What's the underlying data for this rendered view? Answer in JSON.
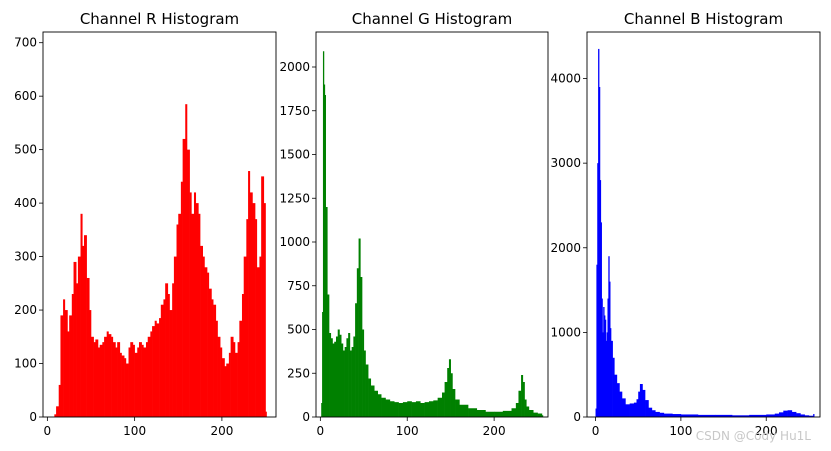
{
  "watermark": "CSDN @Cody Hu1L",
  "chart_data": [
    {
      "type": "bar",
      "title": "Channel R Histogram",
      "color": "#ff0000",
      "xlim": [
        -5,
        262
      ],
      "ylim": [
        0,
        720
      ],
      "xticks": [
        0,
        100,
        200
      ],
      "yticks": [
        0,
        100,
        200,
        300,
        400,
        500,
        600,
        700
      ],
      "x": [
        8,
        10,
        13,
        15,
        18,
        20,
        23,
        25,
        28,
        30,
        33,
        35,
        38,
        40,
        42,
        45,
        48,
        50,
        53,
        55,
        58,
        60,
        63,
        65,
        68,
        70,
        73,
        75,
        78,
        80,
        83,
        85,
        88,
        90,
        93,
        95,
        98,
        100,
        103,
        105,
        108,
        110,
        113,
        115,
        118,
        120,
        123,
        125,
        128,
        130,
        133,
        135,
        138,
        140,
        143,
        145,
        148,
        150,
        153,
        155,
        158,
        160,
        163,
        165,
        168,
        170,
        173,
        175,
        178,
        180,
        183,
        185,
        188,
        190,
        193,
        195,
        198,
        200,
        203,
        205,
        208,
        210,
        213,
        215,
        218,
        220,
        223,
        225,
        228,
        230,
        232,
        235,
        238,
        240,
        243,
        245,
        248,
        250
      ],
      "values": [
        5,
        20,
        60,
        190,
        220,
        200,
        160,
        190,
        230,
        290,
        250,
        300,
        380,
        320,
        340,
        260,
        200,
        150,
        140,
        145,
        130,
        135,
        140,
        150,
        160,
        155,
        150,
        140,
        130,
        140,
        120,
        115,
        110,
        100,
        130,
        140,
        135,
        120,
        130,
        140,
        135,
        130,
        140,
        150,
        160,
        170,
        180,
        175,
        185,
        210,
        220,
        250,
        230,
        200,
        250,
        300,
        360,
        380,
        440,
        520,
        585,
        500,
        420,
        380,
        420,
        400,
        380,
        320,
        300,
        280,
        270,
        240,
        220,
        210,
        180,
        150,
        130,
        110,
        95,
        100,
        120,
        150,
        140,
        120,
        140,
        180,
        230,
        300,
        370,
        460,
        420,
        400,
        370,
        280,
        300,
        450,
        400,
        10
      ]
    },
    {
      "type": "bar",
      "title": "Channel G Histogram",
      "color": "#008000",
      "xlim": [
        -5,
        262
      ],
      "ylim": [
        0,
        2200
      ],
      "xticks": [
        0,
        100,
        200
      ],
      "yticks": [
        0,
        250,
        500,
        750,
        1000,
        1250,
        1500,
        1750,
        2000
      ],
      "x": [
        1,
        2,
        3,
        4,
        5,
        6,
        8,
        10,
        12,
        14,
        16,
        18,
        20,
        22,
        24,
        26,
        28,
        30,
        32,
        34,
        36,
        38,
        40,
        42,
        44,
        46,
        48,
        50,
        52,
        55,
        58,
        62,
        66,
        70,
        75,
        80,
        85,
        90,
        95,
        100,
        105,
        110,
        115,
        120,
        125,
        130,
        135,
        140,
        143,
        146,
        148,
        150,
        152,
        155,
        160,
        170,
        180,
        190,
        200,
        210,
        220,
        225,
        228,
        231,
        233,
        235,
        237,
        240,
        245,
        250,
        255
      ],
      "values": [
        80,
        600,
        2090,
        1900,
        1840,
        1200,
        700,
        480,
        450,
        420,
        430,
        460,
        500,
        470,
        420,
        380,
        400,
        450,
        480,
        380,
        400,
        460,
        650,
        850,
        1020,
        800,
        500,
        380,
        300,
        220,
        180,
        150,
        130,
        110,
        100,
        90,
        85,
        80,
        85,
        90,
        85,
        90,
        80,
        85,
        90,
        95,
        110,
        140,
        200,
        280,
        330,
        250,
        160,
        100,
        70,
        50,
        40,
        30,
        30,
        35,
        50,
        80,
        150,
        240,
        200,
        100,
        60,
        40,
        25,
        20,
        10
      ]
    },
    {
      "type": "bar",
      "title": "Channel B Histogram",
      "color": "#0000ff",
      "xlim": [
        -10,
        263
      ],
      "ylim": [
        0,
        4550
      ],
      "xticks": [
        0,
        100,
        200
      ],
      "yticks": [
        0,
        1000,
        2000,
        3000,
        4000
      ],
      "x": [
        0,
        1,
        2,
        3,
        4,
        5,
        6,
        7,
        8,
        9,
        10,
        11,
        12,
        13,
        14,
        15,
        16,
        17,
        18,
        20,
        22,
        25,
        28,
        31,
        35,
        40,
        45,
        48,
        50,
        52,
        55,
        58,
        62,
        66,
        70,
        75,
        80,
        90,
        100,
        120,
        140,
        160,
        180,
        200,
        210,
        215,
        220,
        225,
        230,
        235,
        240,
        245,
        250,
        255
      ],
      "values": [
        100,
        1800,
        3000,
        4350,
        3900,
        2800,
        2300,
        1400,
        1000,
        1300,
        1200,
        1150,
        900,
        1000,
        1400,
        1900,
        1600,
        1050,
        900,
        700,
        500,
        400,
        300,
        220,
        150,
        160,
        170,
        210,
        300,
        390,
        320,
        200,
        110,
        80,
        60,
        50,
        40,
        35,
        30,
        25,
        25,
        20,
        25,
        30,
        40,
        55,
        75,
        80,
        60,
        45,
        30,
        20,
        15,
        35
      ]
    }
  ]
}
